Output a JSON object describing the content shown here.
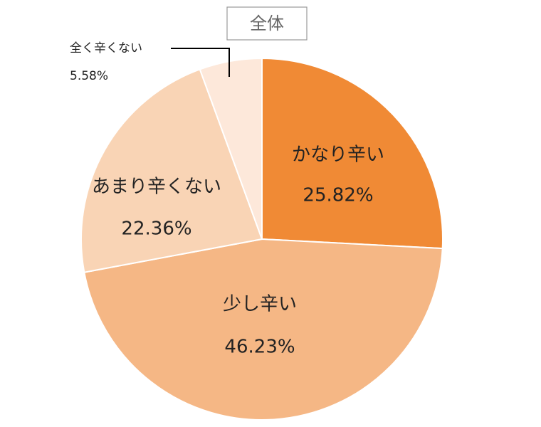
{
  "chart_data": {
    "type": "pie",
    "title": "全体",
    "categories": [
      "かなり辛い",
      "少し辛い",
      "あまり辛くない",
      "全く辛くない"
    ],
    "values": [
      25.82,
      46.23,
      22.36,
      5.58
    ],
    "value_labels": [
      "25.82%",
      "46.23%",
      "22.36%",
      "5.58%"
    ],
    "colors": [
      "#f08a35",
      "#f5b785",
      "#f9d4b5",
      "#fde8da"
    ]
  }
}
